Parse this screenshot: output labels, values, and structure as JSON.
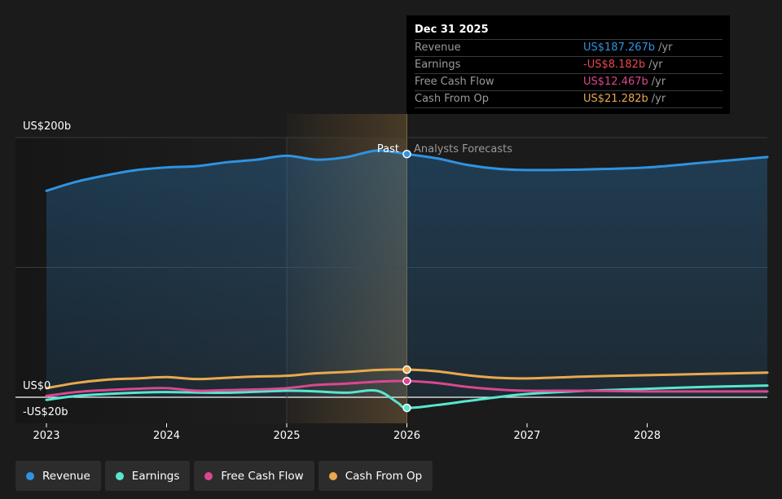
{
  "chart_data": {
    "type": "area",
    "y_axis_labels": [
      "US$200b",
      "US$0",
      "-US$20b"
    ],
    "y_axis_values": [
      200,
      0,
      -20
    ],
    "ylim": [
      -20,
      200
    ],
    "x_ticks": [
      "2023",
      "2024",
      "2025",
      "2026",
      "2027",
      "2028"
    ],
    "xlim": [
      2023,
      2029
    ],
    "past_label": "Past",
    "forecast_label": "Analysts Forecasts",
    "divider_x": 2026,
    "highlight_range": [
      2025,
      2026
    ],
    "series": [
      {
        "name": "Revenue",
        "color": "#2f93e0",
        "filled": true,
        "points": [
          [
            2023.0,
            159
          ],
          [
            2023.25,
            166
          ],
          [
            2023.5,
            171
          ],
          [
            2023.75,
            175
          ],
          [
            2024.0,
            177
          ],
          [
            2024.25,
            178
          ],
          [
            2024.5,
            181
          ],
          [
            2024.75,
            183
          ],
          [
            2025.0,
            186
          ],
          [
            2025.25,
            183
          ],
          [
            2025.5,
            185
          ],
          [
            2025.75,
            190
          ],
          [
            2026.0,
            187.3
          ],
          [
            2026.25,
            184
          ],
          [
            2026.5,
            179
          ],
          [
            2026.75,
            176
          ],
          [
            2027.0,
            175
          ],
          [
            2027.5,
            175.5
          ],
          [
            2028.0,
            177
          ],
          [
            2028.5,
            181
          ],
          [
            2029.0,
            185
          ]
        ]
      },
      {
        "name": "Earnings",
        "color": "#58e6cf",
        "points": [
          [
            2023.0,
            -2
          ],
          [
            2023.25,
            1
          ],
          [
            2023.5,
            2.5
          ],
          [
            2023.75,
            3.5
          ],
          [
            2024.0,
            4
          ],
          [
            2024.5,
            3.5
          ],
          [
            2025.0,
            5
          ],
          [
            2025.25,
            4.5
          ],
          [
            2025.5,
            3.5
          ],
          [
            2025.75,
            5
          ],
          [
            2025.92,
            -4
          ],
          [
            2026.0,
            -8.2
          ],
          [
            2026.25,
            -6
          ],
          [
            2026.5,
            -3
          ],
          [
            2026.75,
            0
          ],
          [
            2027.0,
            2.5
          ],
          [
            2027.5,
            5
          ],
          [
            2028.0,
            6.5
          ],
          [
            2028.5,
            8
          ],
          [
            2029.0,
            9
          ]
        ]
      },
      {
        "name": "Free Cash Flow",
        "color": "#d9488f",
        "points": [
          [
            2023.0,
            1
          ],
          [
            2023.25,
            4
          ],
          [
            2023.5,
            5.5
          ],
          [
            2023.75,
            6.5
          ],
          [
            2024.0,
            7
          ],
          [
            2024.25,
            5
          ],
          [
            2024.5,
            5.5
          ],
          [
            2024.75,
            6
          ],
          [
            2025.0,
            7
          ],
          [
            2025.25,
            9.5
          ],
          [
            2025.5,
            10.5
          ],
          [
            2025.75,
            12
          ],
          [
            2026.0,
            12.5
          ],
          [
            2026.25,
            11
          ],
          [
            2026.5,
            8
          ],
          [
            2026.75,
            6
          ],
          [
            2027.0,
            5
          ],
          [
            2027.5,
            5
          ],
          [
            2028.0,
            4.5
          ],
          [
            2028.5,
            4.5
          ],
          [
            2029.0,
            4.5
          ]
        ]
      },
      {
        "name": "Cash From Op",
        "color": "#e8a94e",
        "points": [
          [
            2023.0,
            7
          ],
          [
            2023.25,
            11
          ],
          [
            2023.5,
            13.5
          ],
          [
            2023.75,
            14.5
          ],
          [
            2024.0,
            15.5
          ],
          [
            2024.25,
            14
          ],
          [
            2024.5,
            15
          ],
          [
            2024.75,
            16
          ],
          [
            2025.0,
            16.5
          ],
          [
            2025.25,
            18.5
          ],
          [
            2025.5,
            19.5
          ],
          [
            2025.75,
            21
          ],
          [
            2026.0,
            21.3
          ],
          [
            2026.25,
            20
          ],
          [
            2026.5,
            17
          ],
          [
            2026.75,
            15
          ],
          [
            2027.0,
            14.5
          ],
          [
            2027.5,
            16
          ],
          [
            2028.0,
            17
          ],
          [
            2028.5,
            18
          ],
          [
            2029.0,
            19
          ]
        ]
      }
    ]
  },
  "tooltip": {
    "date": "Dec 31 2025",
    "unit": "/yr",
    "rows": [
      {
        "label": "Revenue",
        "value": "US$187.267b",
        "color": "#2f93e0"
      },
      {
        "label": "Earnings",
        "value": "-US$8.182b",
        "color": "#e8474f"
      },
      {
        "label": "Free Cash Flow",
        "value": "US$12.467b",
        "color": "#d9488f"
      },
      {
        "label": "Cash From Op",
        "value": "US$21.282b",
        "color": "#e8a94e"
      }
    ]
  },
  "legend": [
    {
      "label": "Revenue",
      "color": "#2f93e0"
    },
    {
      "label": "Earnings",
      "color": "#58e6cf"
    },
    {
      "label": "Free Cash Flow",
      "color": "#d9488f"
    },
    {
      "label": "Cash From Op",
      "color": "#e8a94e"
    }
  ]
}
